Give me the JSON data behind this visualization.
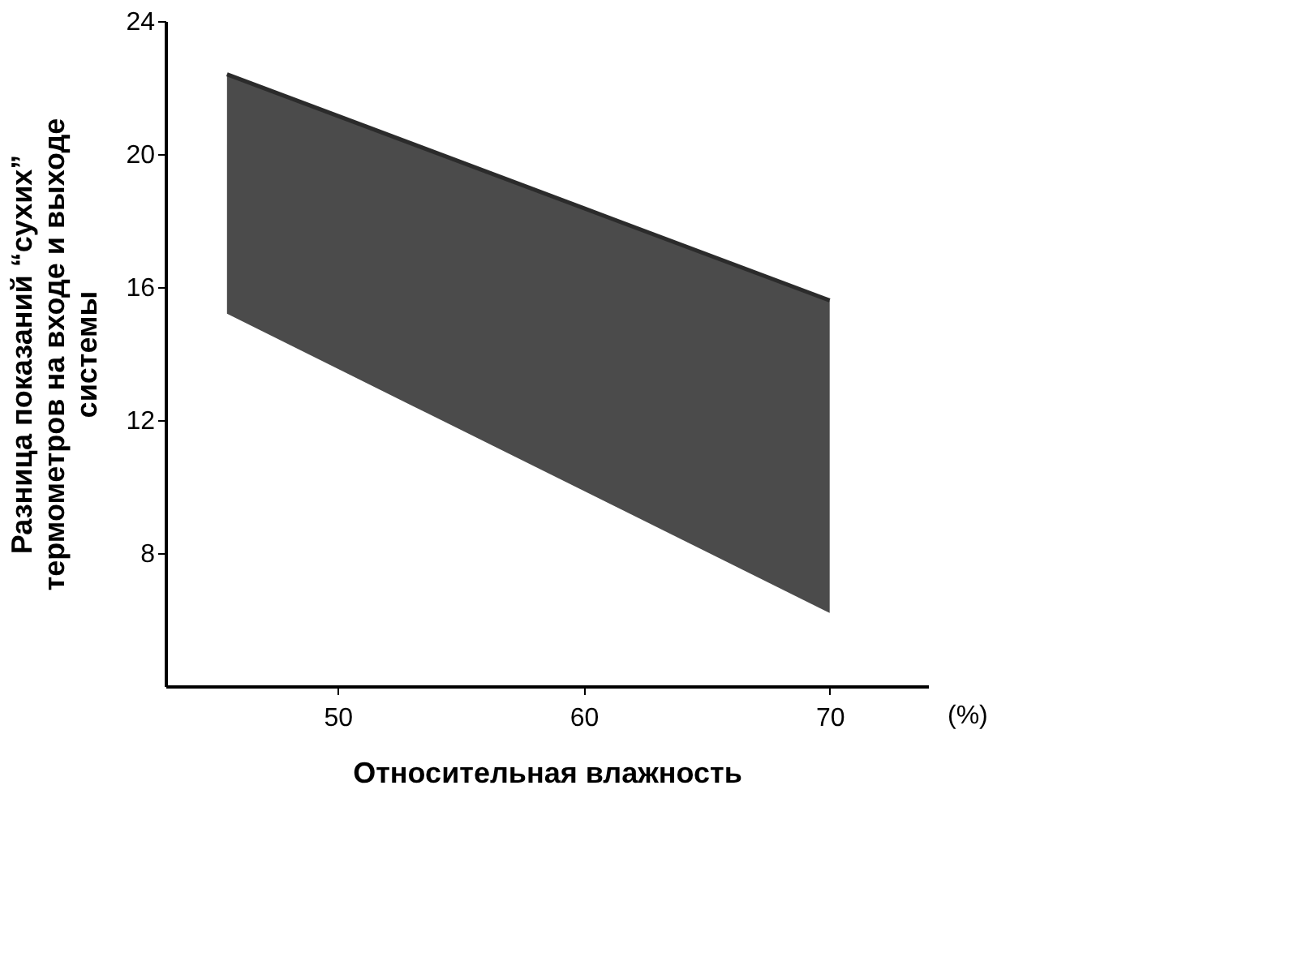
{
  "chart_data": {
    "type": "line",
    "xlabel": "Относительная влажность",
    "ylabel": "Разница показаний “сухих” термометров на входе и выходе системы",
    "annotations": [
      "(%)"
    ],
    "xlim": [
      43,
      74
    ],
    "xticks": [
      50,
      60,
      70
    ],
    "ylim": [
      4,
      24
    ],
    "yticks": [
      8,
      12,
      16,
      20,
      24
    ],
    "grid": false,
    "legend": false,
    "series": [
      {
        "color": "#2b2b2b",
        "x": [
          45.5,
          70
        ],
        "values": [
          22.4,
          15.6
        ],
        "upper": [
          22.4,
          15.6
        ],
        "lower": [
          15.2,
          6.2
        ]
      }
    ]
  }
}
